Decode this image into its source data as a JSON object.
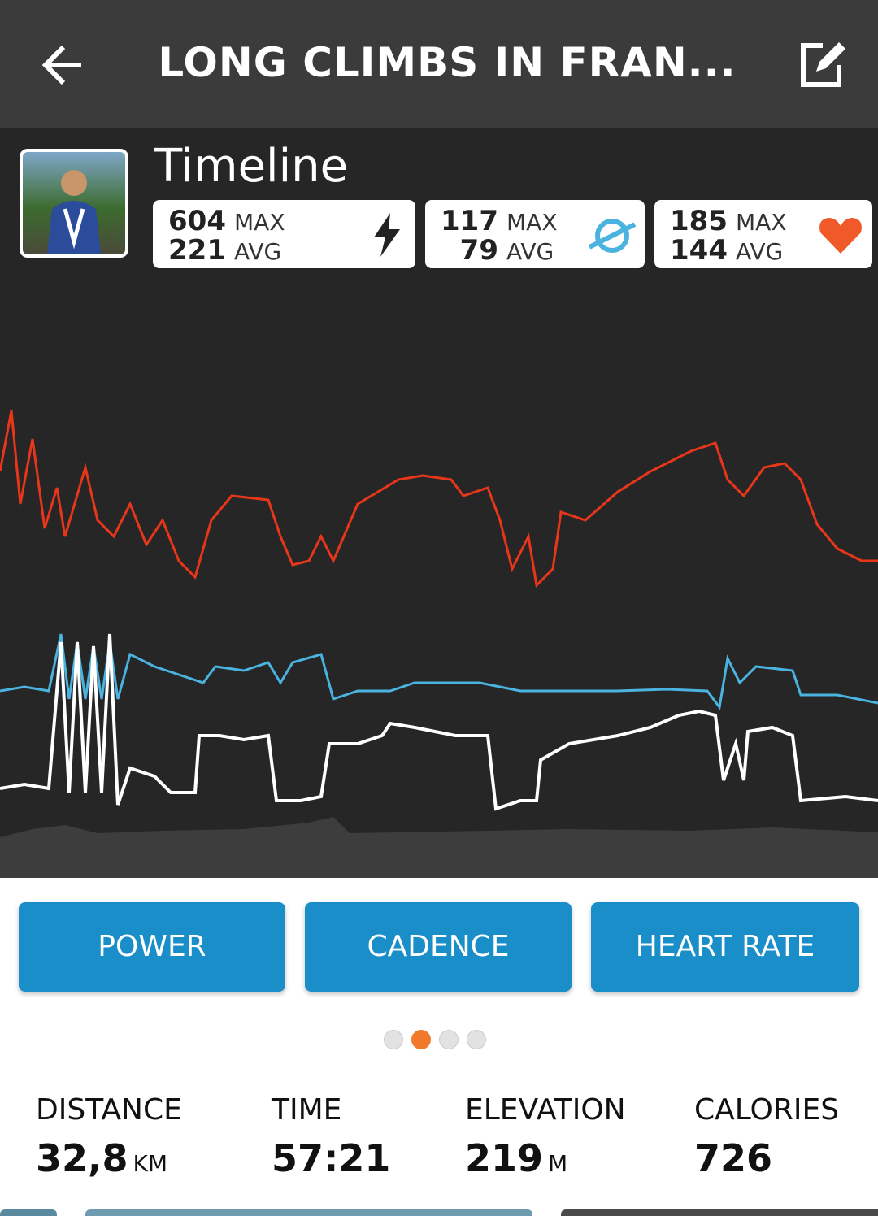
{
  "header": {
    "title": "LONG CLIMBS IN FRAN..."
  },
  "timeline": {
    "title": "Timeline",
    "stats": [
      {
        "max": 604,
        "max_label": "MAX",
        "avg": 221,
        "avg_label": "AVG"
      },
      {
        "max": 117,
        "max_label": "MAX",
        "avg": 79,
        "avg_label": "AVG"
      },
      {
        "max": 185,
        "max_label": "MAX",
        "avg": 144,
        "avg_label": "AVG"
      }
    ]
  },
  "buttons": [
    "POWER",
    "CADENCE",
    "HEART RATE"
  ],
  "summary": [
    {
      "label": "DISTANCE",
      "value": "32,8",
      "unit": "KM"
    },
    {
      "label": "TIME",
      "value": "57:21"
    },
    {
      "label": "ELEVATION",
      "value": 219,
      "unit": "M"
    },
    {
      "label": "CALORIES",
      "value": 726
    }
  ]
}
